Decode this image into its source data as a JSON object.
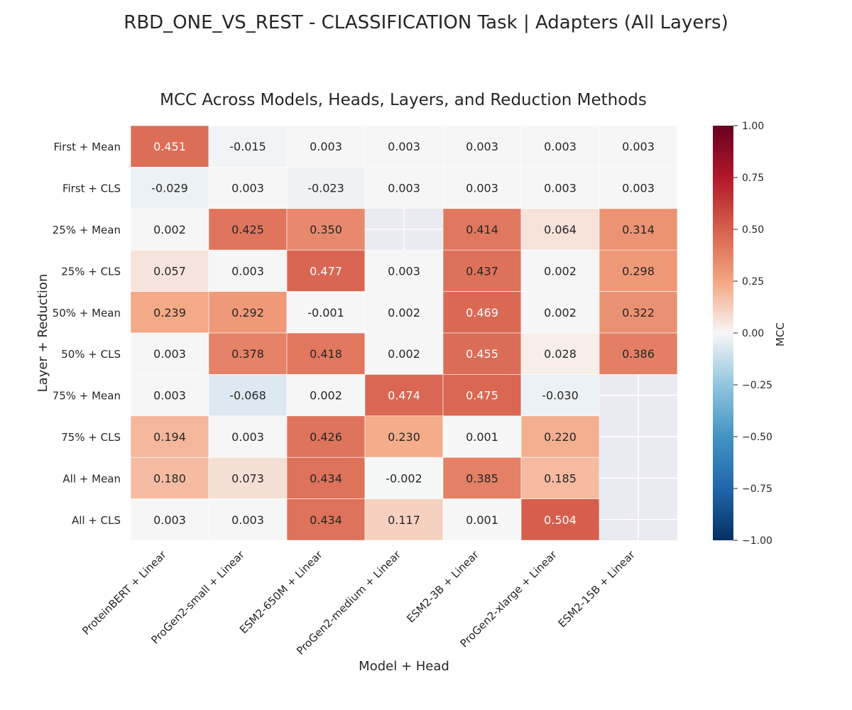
{
  "suptitle": "RBD_ONE_VS_REST - CLASSIFICATION Task | Adapters (All Layers)",
  "chart_data": {
    "type": "heatmap",
    "title": "MCC Across Models, Heads, Layers, and Reduction Methods",
    "xlabel": "Model + Head",
    "ylabel": "Layer + Reduction",
    "columns": [
      "ProteinBERT + Linear",
      "ProGen2-small + Linear",
      "ESM2-650M + Linear",
      "ProGen2-medium + Linear",
      "ESM2-3B + Linear",
      "ProGen2-xlarge + Linear",
      "ESM2-15B + Linear"
    ],
    "rows": [
      "First + Mean",
      "First + CLS",
      "25% + Mean",
      "25% + CLS",
      "50% + Mean",
      "50% + CLS",
      "75% + Mean",
      "75% + CLS",
      "All + Mean",
      "All + CLS"
    ],
    "values": [
      [
        0.451,
        -0.015,
        0.003,
        0.003,
        0.003,
        0.003,
        0.003
      ],
      [
        -0.029,
        0.003,
        -0.023,
        0.003,
        0.003,
        0.003,
        0.003
      ],
      [
        0.002,
        0.425,
        0.35,
        null,
        0.414,
        0.064,
        0.314
      ],
      [
        0.057,
        0.003,
        0.477,
        0.003,
        0.437,
        0.002,
        0.298
      ],
      [
        0.239,
        0.292,
        -0.001,
        0.002,
        0.469,
        0.002,
        0.322
      ],
      [
        0.003,
        0.378,
        0.418,
        0.002,
        0.455,
        0.028,
        0.386
      ],
      [
        0.003,
        -0.068,
        0.002,
        0.474,
        0.475,
        -0.03,
        null
      ],
      [
        0.194,
        0.003,
        0.426,
        0.23,
        0.001,
        0.22,
        null
      ],
      [
        0.18,
        0.073,
        0.434,
        -0.002,
        0.385,
        0.185,
        null
      ],
      [
        0.003,
        0.003,
        0.434,
        0.117,
        0.001,
        0.504,
        null
      ]
    ],
    "colorbar": {
      "label": "MCC",
      "range": [
        -1.0,
        1.0
      ],
      "ticks": [
        "1.00",
        "0.75",
        "0.50",
        "0.25",
        "0.00",
        "−0.25",
        "−0.50",
        "−0.75",
        "−1.00"
      ],
      "tick_values": [
        1.0,
        0.75,
        0.5,
        0.25,
        0.0,
        -0.25,
        -0.5,
        -0.75,
        -1.0
      ],
      "colormap": "RdBu_r"
    },
    "missing_color": "#eaeaf2",
    "legend": "colorbar-right"
  }
}
